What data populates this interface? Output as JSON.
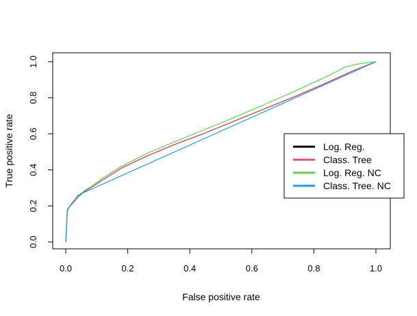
{
  "chart_data": {
    "type": "line",
    "title": "",
    "xlabel": "False positive rate",
    "ylabel": "True positive rate",
    "xlim": [
      0,
      1
    ],
    "ylim": [
      0,
      1
    ],
    "xticks": [
      0.0,
      0.2,
      0.4,
      0.6,
      0.8,
      1.0
    ],
    "yticks": [
      0.0,
      0.2,
      0.4,
      0.6,
      0.8,
      1.0
    ],
    "xtick_labels": [
      "0.0",
      "0.2",
      "0.4",
      "0.6",
      "0.8",
      "1.0"
    ],
    "ytick_labels": [
      "0.0",
      "0.2",
      "0.4",
      "0.6",
      "0.8",
      "1.0"
    ],
    "grid": false,
    "legend_position": "right",
    "series": [
      {
        "name": "Log. Reg.",
        "color": "#000000",
        "x": [
          0,
          0.005,
          0.01,
          0.02,
          0.04,
          0.06,
          0.08,
          0.12,
          0.18,
          0.26,
          0.35,
          0.45,
          0.55,
          0.65,
          0.75,
          0.85,
          0.92,
          1.0
        ],
        "y": [
          0,
          0.17,
          0.19,
          0.21,
          0.25,
          0.28,
          0.3,
          0.345,
          0.41,
          0.475,
          0.54,
          0.605,
          0.675,
          0.745,
          0.815,
          0.89,
          0.945,
          1.0
        ]
      },
      {
        "name": "Class. Tree",
        "color": "#df536b",
        "x": [
          0,
          0.005,
          0.01,
          0.02,
          0.04,
          0.06,
          0.08,
          0.12,
          0.18,
          0.26,
          0.35,
          0.45,
          0.55,
          0.65,
          0.75,
          0.85,
          0.92,
          1.0
        ],
        "y": [
          0,
          0.17,
          0.19,
          0.21,
          0.25,
          0.28,
          0.3,
          0.345,
          0.41,
          0.475,
          0.54,
          0.605,
          0.675,
          0.745,
          0.815,
          0.89,
          0.945,
          1.0
        ]
      },
      {
        "name": "Log. Reg. NC",
        "color": "#61d04f",
        "x": [
          0,
          0.005,
          0.01,
          0.02,
          0.04,
          0.06,
          0.08,
          0.12,
          0.18,
          0.26,
          0.35,
          0.45,
          0.55,
          0.65,
          0.75,
          0.85,
          0.9,
          0.95,
          1.0
        ],
        "y": [
          0,
          0.17,
          0.19,
          0.215,
          0.255,
          0.285,
          0.305,
          0.355,
          0.42,
          0.49,
          0.555,
          0.625,
          0.695,
          0.77,
          0.845,
          0.925,
          0.97,
          0.99,
          1.0
        ]
      },
      {
        "name": "Class. Tree. NC",
        "color": "#2297e6",
        "x": [
          0,
          0.005,
          0.04,
          1.0
        ],
        "y": [
          0,
          0.18,
          0.26,
          1.0
        ]
      }
    ]
  }
}
